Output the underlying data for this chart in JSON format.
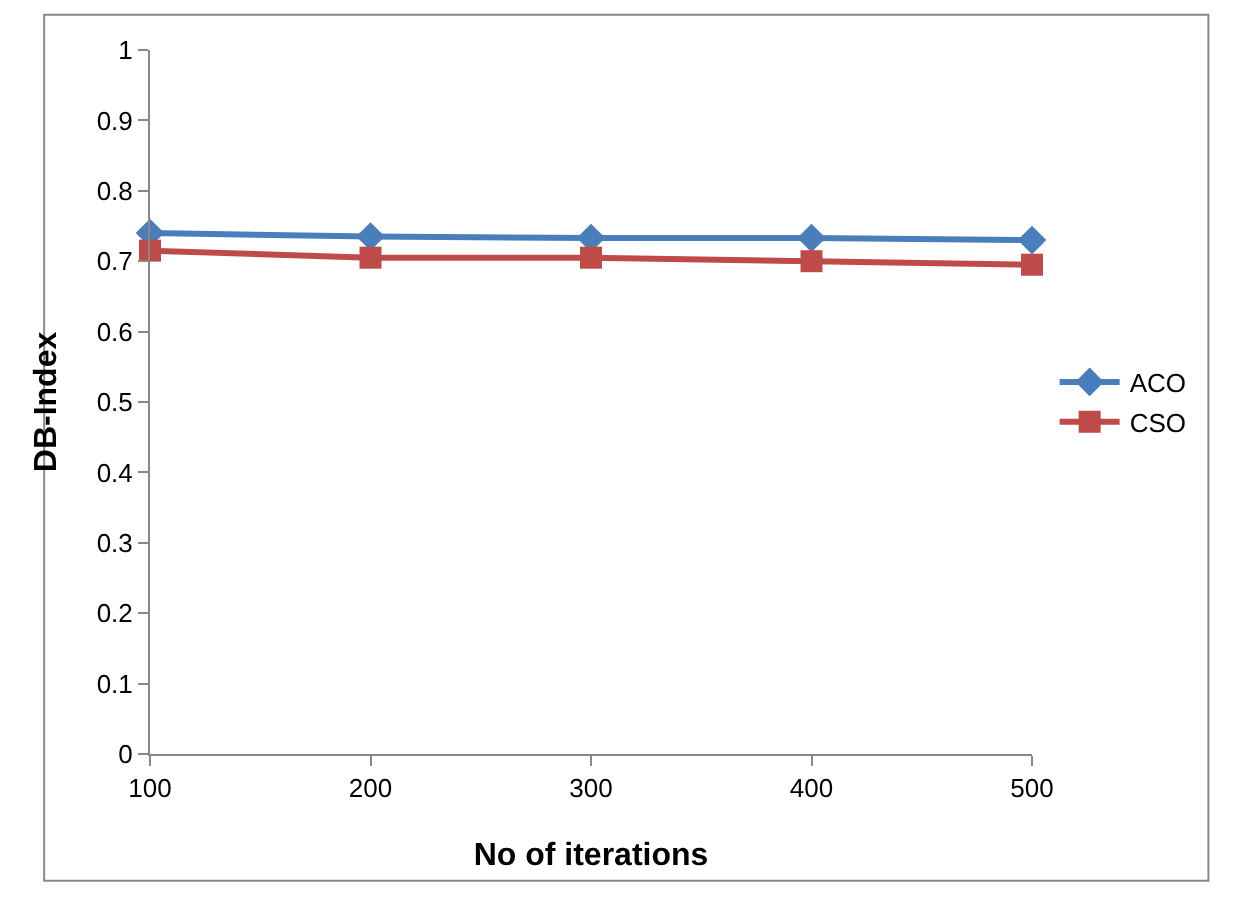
{
  "chart_data": {
    "type": "line",
    "xlabel": "No of iterations",
    "ylabel": "DB-Index",
    "categories": [
      "100",
      "200",
      "300",
      "400",
      "500"
    ],
    "series": [
      {
        "name": "ACO",
        "color": "#4a7ebb",
        "marker": "diamond",
        "values": [
          0.74,
          0.735,
          0.733,
          0.733,
          0.73
        ]
      },
      {
        "name": "CSO",
        "color": "#be4b48",
        "marker": "square",
        "values": [
          0.715,
          0.705,
          0.705,
          0.7,
          0.695
        ]
      }
    ],
    "ylim": [
      0,
      1
    ],
    "yticks": [
      0,
      0.1,
      0.2,
      0.3,
      0.4,
      0.5,
      0.6,
      0.7,
      0.8,
      0.9,
      1
    ],
    "legend": "right"
  }
}
